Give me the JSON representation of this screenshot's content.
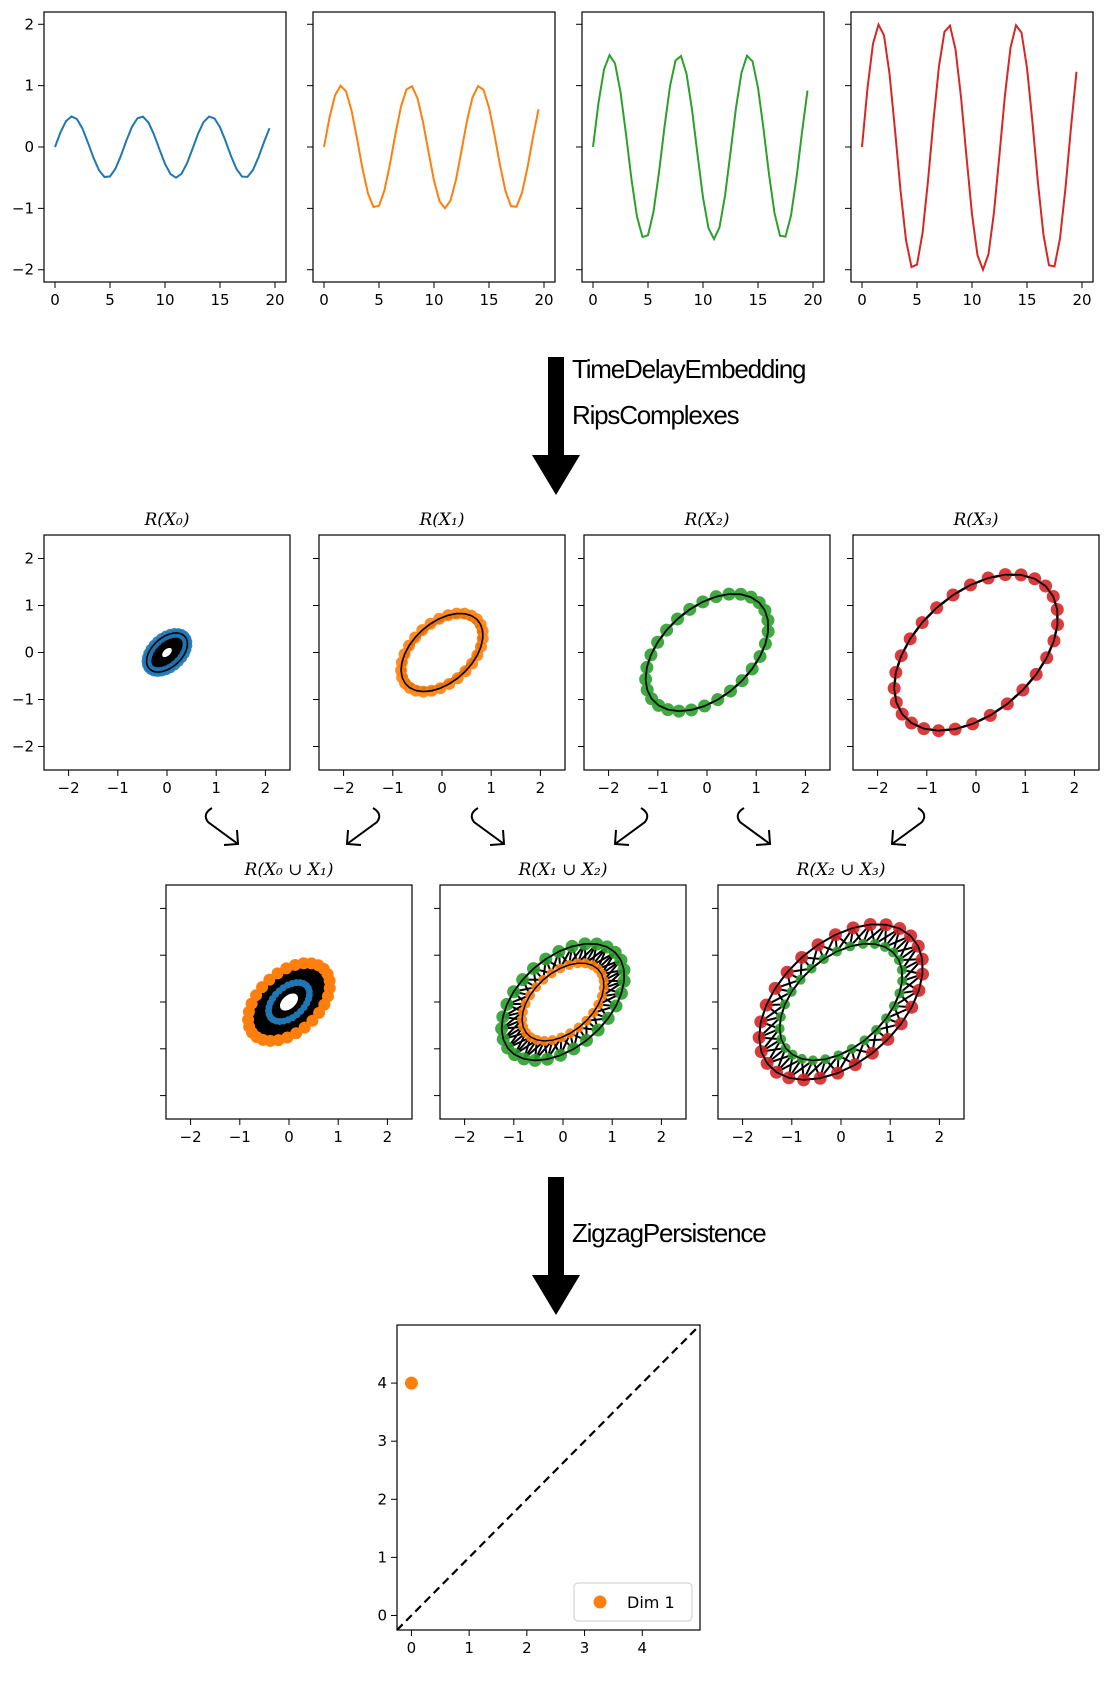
{
  "colors": {
    "series": [
      "#1f77b4",
      "#ff7f0e",
      "#2ca02c",
      "#d62728"
    ],
    "edges": "#000000",
    "axes": "#000000"
  },
  "stage_labels": {
    "embedding_line1": "TimeDelayEmbedding",
    "embedding_line2": "RipsComplexes",
    "zigzag": "ZigzagPersistence"
  },
  "arrows": {
    "down_arrow_icon": "down-arrow-icon",
    "curved_arrow_icon": "curved-arrow-icon"
  },
  "chart_data": [
    {
      "type": "line",
      "group": "time-series",
      "series": [
        {
          "amplitude": 0.5,
          "color": "#1f77b4"
        },
        {
          "amplitude": 1.0,
          "color": "#ff7f0e"
        },
        {
          "amplitude": 1.5,
          "color": "#2ca02c"
        },
        {
          "amplitude": 2.0,
          "color": "#d62728"
        }
      ],
      "x_range": [
        0,
        19.7
      ],
      "sample_step": 0.5,
      "period": 6.28,
      "xlim": [
        -1,
        21
      ],
      "ylim": [
        -2.2,
        2.2
      ],
      "xticks": [
        0,
        5,
        10,
        15,
        20
      ],
      "yticks": [
        -2,
        -1,
        0,
        1,
        2
      ],
      "tick_labels_x": [
        "0",
        "5",
        "10",
        "15",
        "20"
      ],
      "tick_labels_y": [
        "−2",
        "−1",
        "0",
        "1",
        "2"
      ]
    },
    {
      "type": "scatter",
      "group": "rips-complexes",
      "titles": [
        "R(X₀)",
        "R(X₁)",
        "R(X₂)",
        "R(X₃)"
      ],
      "radii": [
        0.5,
        1.0,
        1.5,
        2.0
      ],
      "colors": [
        "#1f77b4",
        "#ff7f0e",
        "#2ca02c",
        "#d62728"
      ],
      "points_per_cloud": 29,
      "xlim": [
        -2.5,
        2.5
      ],
      "ylim": [
        -2.5,
        2.5
      ],
      "xticks": [
        -2,
        -1,
        0,
        1,
        2
      ],
      "yticks": [
        -2,
        -1,
        0,
        1,
        2
      ],
      "tick_labels": [
        "−2",
        "−1",
        "0",
        "1",
        "2"
      ]
    },
    {
      "type": "scatter",
      "group": "union-complexes",
      "titles": [
        "R(X₀ ∪ X₁)",
        "R(X₁ ∪ X₂)",
        "R(X₂ ∪ X₃)"
      ],
      "pairs": [
        [
          0.5,
          1.0
        ],
        [
          1.0,
          1.5
        ],
        [
          1.5,
          2.0
        ]
      ],
      "pair_colors": [
        [
          "#1f77b4",
          "#ff7f0e"
        ],
        [
          "#ff7f0e",
          "#2ca02c"
        ],
        [
          "#2ca02c",
          "#d62728"
        ]
      ],
      "xlim": [
        -2.5,
        2.5
      ],
      "ylim": [
        -2.5,
        2.5
      ],
      "xticks": [
        -2,
        -1,
        0,
        1,
        2
      ],
      "tick_labels": [
        "−2",
        "−1",
        "0",
        "1",
        "2"
      ]
    },
    {
      "type": "scatter",
      "group": "persistence-diagram",
      "points": [
        {
          "birth": 0,
          "death": 4,
          "dimension": 1
        }
      ],
      "legend": [
        "Dim 1"
      ],
      "point_color": "#ff7f0e",
      "xlim": [
        -0.25,
        5
      ],
      "ylim": [
        -0.25,
        5
      ],
      "xticks": [
        0,
        1,
        2,
        3,
        4
      ],
      "yticks": [
        0,
        1,
        2,
        3,
        4
      ],
      "tick_labels": [
        "0",
        "1",
        "2",
        "3",
        "4"
      ],
      "diagonal": "dashed",
      "legend_position": "bottom-right"
    }
  ]
}
